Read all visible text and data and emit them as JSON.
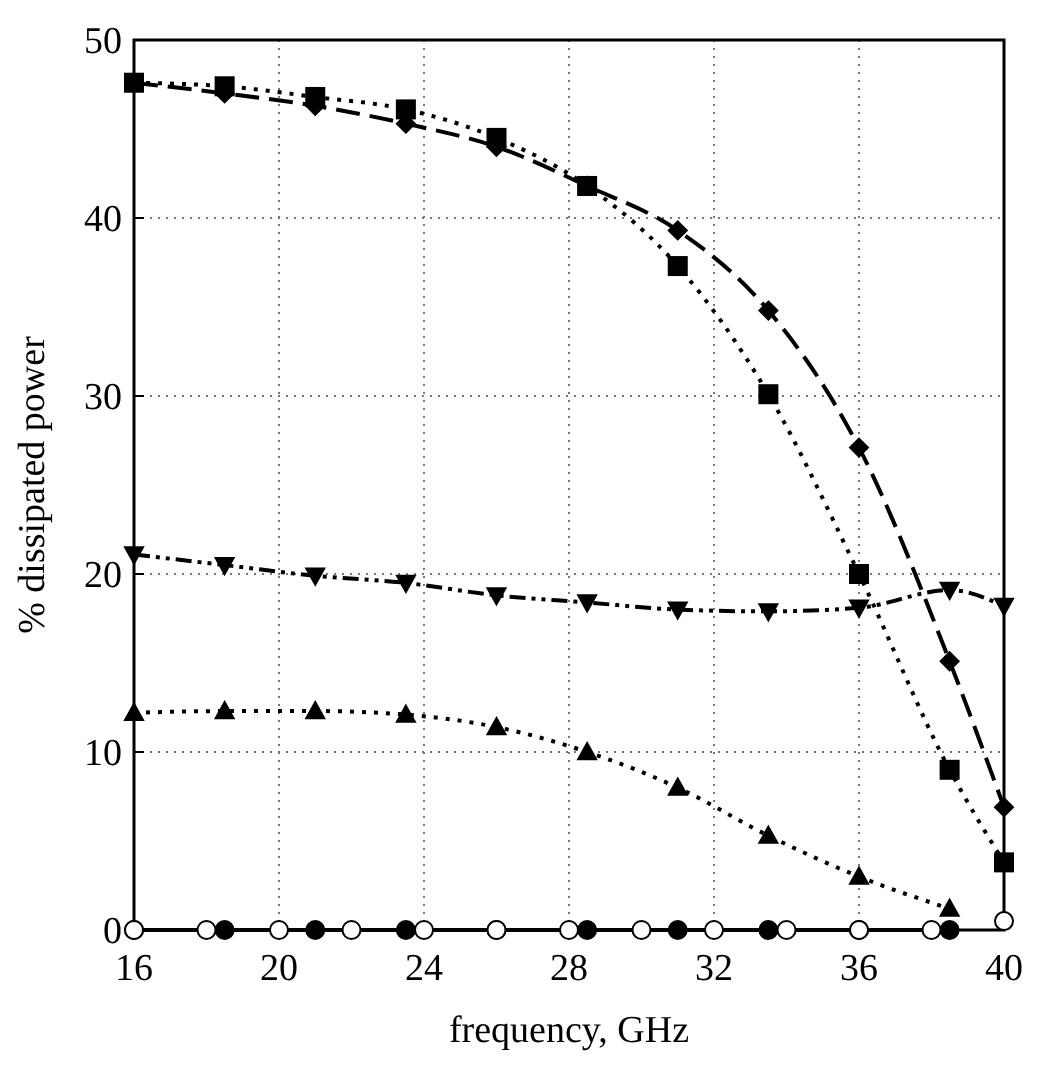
{
  "chart_data": {
    "type": "line",
    "xlabel": "frequency, GHz",
    "ylabel": "% dissipated power",
    "xlim": [
      16,
      40
    ],
    "xticks": [
      16,
      20,
      24,
      28,
      32,
      36,
      40
    ],
    "ylim": [
      0,
      50
    ],
    "yticks": [
      0,
      10,
      20,
      30,
      40,
      50
    ],
    "grid": true,
    "series": [
      {
        "color": "#000000",
        "marker": "square",
        "line_style": "dotted",
        "x": [
          16,
          18.5,
          21,
          23.5,
          26,
          28.5,
          31,
          33.5,
          36,
          38.5,
          40
        ],
        "values": [
          47.6,
          47.4,
          46.8,
          46.1,
          44.5,
          41.8,
          37.3,
          30.1,
          20.0,
          9.0,
          3.8
        ]
      },
      {
        "color": "#000000",
        "marker": "diamond",
        "line_style": "dashed",
        "x": [
          16,
          18.5,
          21,
          23.5,
          26,
          28.5,
          31,
          33.5,
          36,
          38.5,
          40
        ],
        "values": [
          47.6,
          47.0,
          46.3,
          45.3,
          44.0,
          41.8,
          39.3,
          34.8,
          27.1,
          15.1,
          6.9
        ]
      },
      {
        "color": "#000000",
        "marker": "triangle-down",
        "line_style": "dashdot",
        "x": [
          16,
          18.5,
          21,
          23.5,
          26,
          28.5,
          31,
          33.5,
          36,
          38.5,
          40
        ],
        "values": [
          21.1,
          20.5,
          19.9,
          19.5,
          18.8,
          18.4,
          18.0,
          17.9,
          18.1,
          19.1,
          18.2
        ]
      },
      {
        "color": "#000000",
        "marker": "triangle",
        "line_style": "dotted",
        "x": [
          16,
          18.5,
          21,
          23.5,
          26,
          28.5,
          31,
          33.5,
          36,
          38.5
        ],
        "values": [
          12.2,
          12.3,
          12.3,
          12.1,
          11.4,
          10.0,
          8.0,
          5.3,
          3.0,
          1.2
        ]
      },
      {
        "color": "#000000",
        "marker": "circle",
        "line_style": "solid",
        "x": [
          16,
          18.5,
          21,
          23.5,
          26,
          28.5,
          31,
          33.5,
          36,
          38.5
        ],
        "values": [
          0,
          0,
          0,
          0,
          0,
          0,
          0,
          0,
          0,
          0
        ]
      },
      {
        "type": "scatter",
        "color": "#ffffff",
        "marker": "circle",
        "x": [
          16,
          18,
          20,
          22,
          24,
          26,
          28,
          30,
          32,
          34,
          36,
          38,
          40
        ],
        "values": [
          0,
          0,
          0,
          0,
          0,
          0,
          0,
          0,
          0,
          0,
          0,
          0,
          0.5
        ]
      }
    ]
  }
}
